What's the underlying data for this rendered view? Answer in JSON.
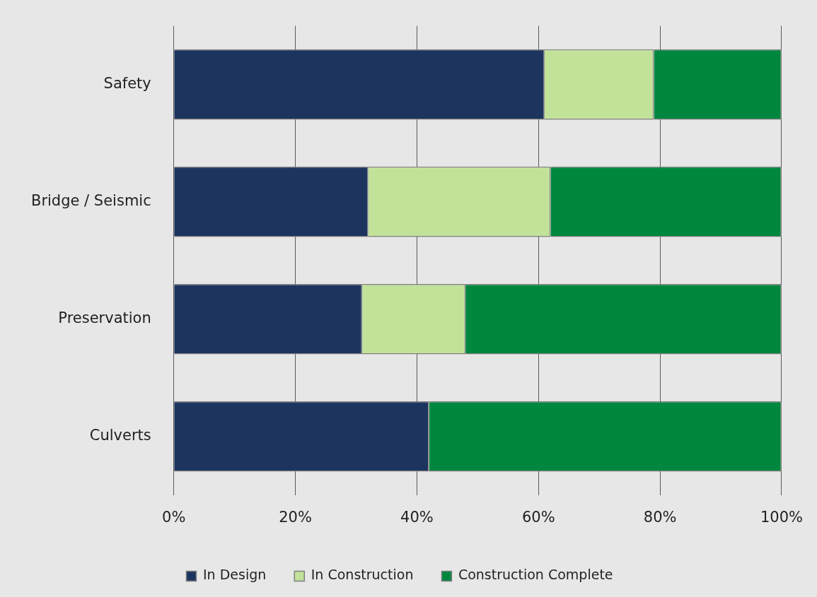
{
  "chart_data": {
    "type": "bar",
    "orientation": "horizontal",
    "stacked": true,
    "categories": [
      "Safety",
      "Bridge / Seismic",
      "Preservation",
      "Culverts"
    ],
    "series": [
      {
        "name": "In Design",
        "color": "#1d355e",
        "values": [
          61,
          32,
          31,
          42
        ]
      },
      {
        "name": "In Construction",
        "color": "#c2e29a",
        "values": [
          18,
          30,
          17,
          0
        ]
      },
      {
        "name": "Construction Complete",
        "color": "#00873e",
        "values": [
          21,
          38,
          52,
          58
        ]
      }
    ],
    "xlim": [
      0,
      100
    ],
    "xticks": [
      {
        "value": 0,
        "label": "0%"
      },
      {
        "value": 20,
        "label": "20%"
      },
      {
        "value": 40,
        "label": "40%"
      },
      {
        "value": 60,
        "label": "60%"
      },
      {
        "value": 80,
        "label": "80%"
      },
      {
        "value": 100,
        "label": "100%"
      }
    ],
    "grid": "x",
    "legend": "bottom"
  }
}
